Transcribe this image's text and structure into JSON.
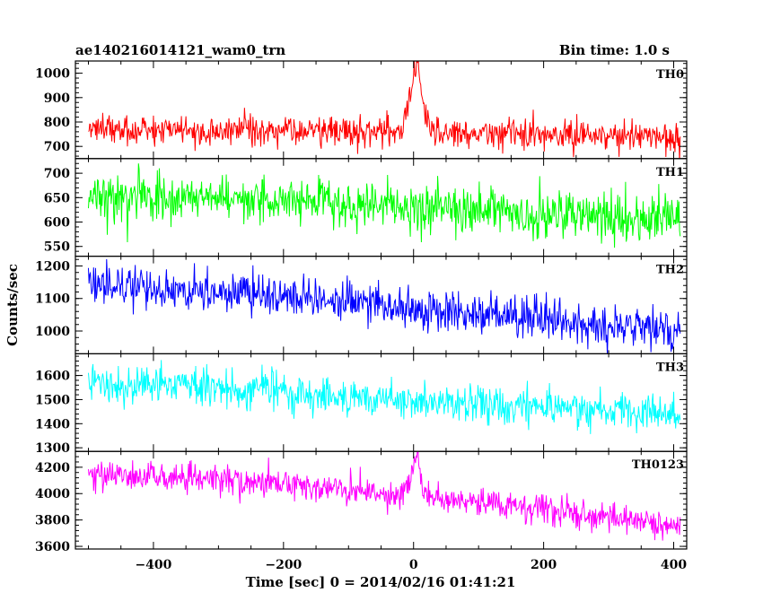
{
  "header": {
    "title": "ae140216014121_wam0_trn",
    "bin_time": "Bin time: 1.0 s"
  },
  "axes": {
    "xlabel": "Time [sec] 0 = 2014/02/16 01:41:21",
    "ylabel": "Counts/sec"
  },
  "chart_data": {
    "type": "line",
    "title": "ae140216014121_wam0_trn",
    "xlabel": "Time [sec] 0 = 2014/02/16 01:41:21",
    "ylabel": "Counts/sec",
    "xlim": [
      -520,
      420
    ],
    "x_ticks": [
      -400,
      -200,
      0,
      200,
      400
    ],
    "x_tick_labels": [
      "−400",
      "−200",
      "0",
      "200",
      "400"
    ],
    "x_range": [
      -500,
      410
    ],
    "bin_time_s": 1.0,
    "grid": false,
    "series": [
      {
        "name": "TH0",
        "color": "#ff0000",
        "ylim": [
          650,
          1050
        ],
        "y_ticks": [
          700,
          800,
          900,
          1000
        ],
        "y_tick_labels": [
          "700",
          "800",
          "900",
          "1000"
        ],
        "trend": [
          [
            -500,
            770
          ],
          [
            -200,
            765
          ],
          [
            0,
            762
          ],
          [
            410,
            735
          ]
        ],
        "noise_sd": 30,
        "flare": {
          "t_peak": 8,
          "peak": 1035,
          "rise_s": 12,
          "decay_s": 6
        }
      },
      {
        "name": "TH1",
        "color": "#00ff00",
        "ylim": [
          530,
          730
        ],
        "y_ticks": [
          550,
          600,
          650,
          700
        ],
        "y_tick_labels": [
          "550",
          "600",
          "650",
          "700"
        ],
        "trend": [
          [
            -500,
            655
          ],
          [
            -200,
            645
          ],
          [
            0,
            630
          ],
          [
            410,
            605
          ]
        ],
        "noise_sd": 24
      },
      {
        "name": "TH2",
        "color": "#0000ff",
        "ylim": [
          930,
          1230
        ],
        "y_ticks": [
          1000,
          1100,
          1200
        ],
        "y_tick_labels": [
          "1000",
          "1100",
          "1200"
        ],
        "trend": [
          [
            -500,
            1145
          ],
          [
            -200,
            1105
          ],
          [
            0,
            1070
          ],
          [
            200,
            1035
          ],
          [
            410,
            1005
          ]
        ],
        "noise_sd": 32
      },
      {
        "name": "TH3",
        "color": "#00ffff",
        "ylim": [
          1285,
          1690
        ],
        "y_ticks": [
          1300,
          1400,
          1500,
          1600
        ],
        "y_tick_labels": [
          "1300",
          "1400",
          "1500",
          "1600"
        ],
        "trend": [
          [
            -500,
            1575
          ],
          [
            -200,
            1535
          ],
          [
            0,
            1495
          ],
          [
            410,
            1440
          ]
        ],
        "noise_sd": 38
      },
      {
        "name": "TH0123",
        "color": "#ff00ff",
        "ylim": [
          3580,
          4320
        ],
        "y_ticks": [
          3600,
          3800,
          4000,
          4200
        ],
        "y_tick_labels": [
          "3600",
          "3800",
          "4000",
          "4200"
        ],
        "trend": [
          [
            -500,
            4150
          ],
          [
            -200,
            4070
          ],
          [
            0,
            3990
          ],
          [
            200,
            3880
          ],
          [
            410,
            3750
          ]
        ],
        "noise_sd": 55,
        "flare": {
          "t_peak": 8,
          "peak": 4260,
          "rise_s": 10,
          "decay_s": 5
        }
      }
    ]
  }
}
